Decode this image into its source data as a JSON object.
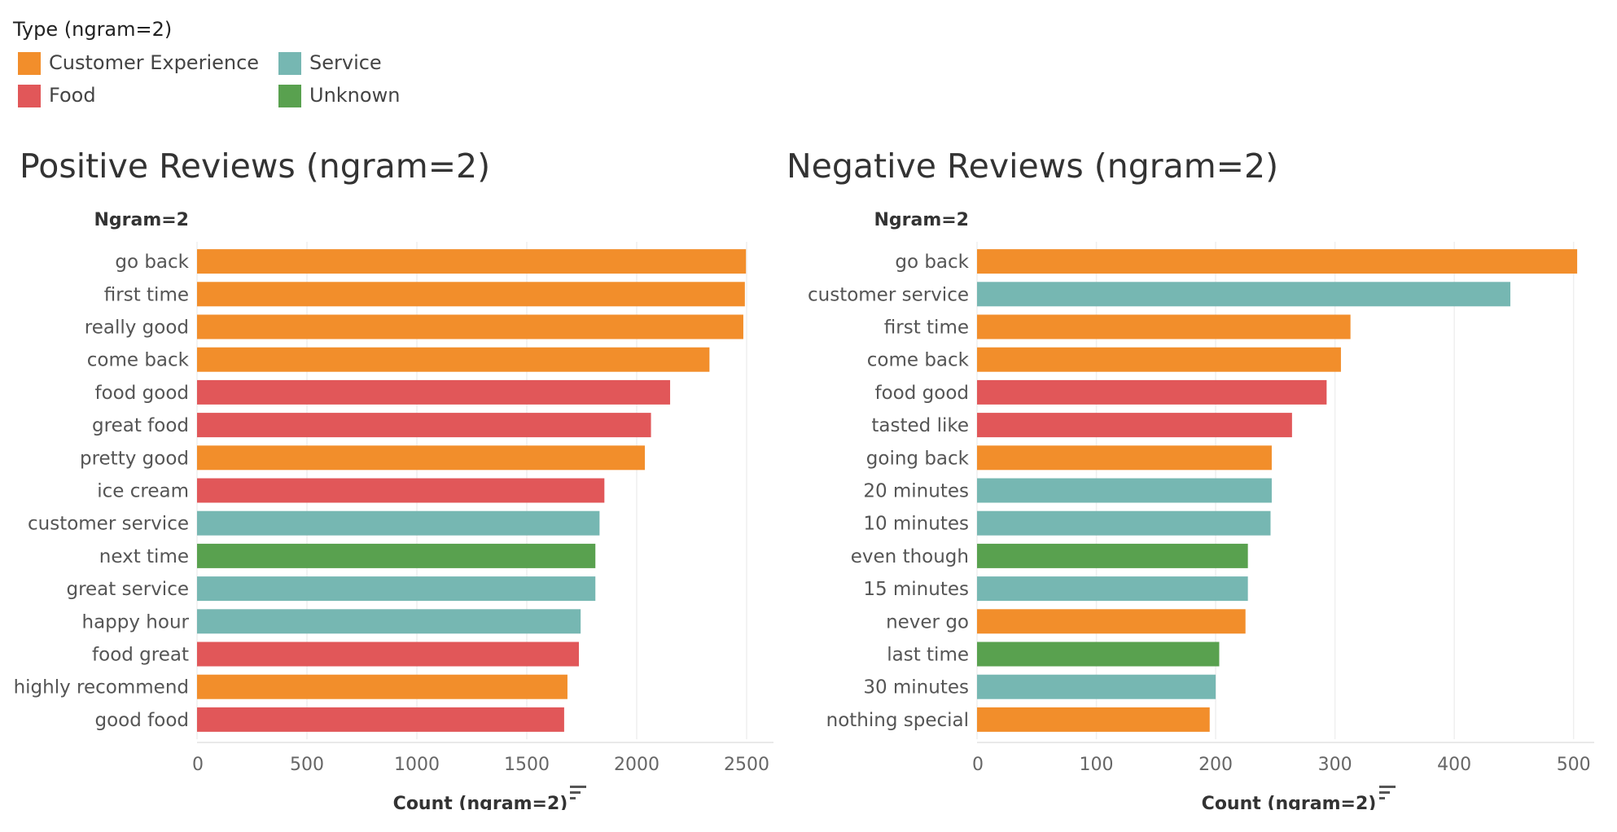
{
  "legend": {
    "title": "Type (ngram=2)",
    "items": [
      {
        "label": "Customer Experience",
        "color": "#f28e2b"
      },
      {
        "label": "Service",
        "color": "#76b7b2"
      },
      {
        "label": "Food",
        "color": "#e15759"
      },
      {
        "label": "Unknown",
        "color": "#59a14f"
      }
    ]
  },
  "icons": {
    "sort": "sort-descending-icon"
  },
  "chart_data": [
    {
      "type": "bar",
      "orientation": "horizontal",
      "title": "Positive Reviews (ngram=2)",
      "row_header": "Ngram=2",
      "xlabel": "Count (ngram=2)",
      "xlim": [
        0,
        2600
      ],
      "xticks": [
        "0",
        "500",
        "1000",
        "1500",
        "2000",
        "2500"
      ],
      "categories": [
        "go back",
        "first time",
        "really good",
        "come back",
        "food good",
        "great food",
        "pretty good",
        "ice cream",
        "customer service",
        "next time",
        "great service",
        "happy hour",
        "food great",
        "highly recommend",
        "good food"
      ],
      "values": [
        2497,
        2492,
        2485,
        2331,
        2152,
        2065,
        2037,
        1853,
        1831,
        1812,
        1812,
        1745,
        1737,
        1685,
        1670
      ],
      "types": [
        "Customer Experience",
        "Customer Experience",
        "Customer Experience",
        "Customer Experience",
        "Food",
        "Food",
        "Customer Experience",
        "Food",
        "Service",
        "Unknown",
        "Service",
        "Service",
        "Food",
        "Customer Experience",
        "Food"
      ],
      "grid": true
    },
    {
      "type": "bar",
      "orientation": "horizontal",
      "title": "Negative Reviews (ngram=2)",
      "row_header": "Ngram=2",
      "xlabel": "Count (ngram=2)",
      "xlim": [
        0,
        520
      ],
      "xticks": [
        "0",
        "100",
        "200",
        "300",
        "400",
        "500"
      ],
      "categories": [
        "go back",
        "customer service",
        "first time",
        "come back",
        "food good",
        "tasted like",
        "going back",
        "20 minutes",
        "10 minutes",
        "even though",
        "15 minutes",
        "never go",
        "last time",
        "30 minutes",
        "nothing special"
      ],
      "values": [
        503,
        447,
        313,
        305,
        293,
        264,
        247,
        247,
        246,
        227,
        227,
        225,
        203,
        200,
        195
      ],
      "types": [
        "Customer Experience",
        "Service",
        "Customer Experience",
        "Customer Experience",
        "Food",
        "Food",
        "Customer Experience",
        "Service",
        "Service",
        "Unknown",
        "Service",
        "Customer Experience",
        "Unknown",
        "Service",
        "Customer Experience"
      ],
      "grid": true
    }
  ]
}
